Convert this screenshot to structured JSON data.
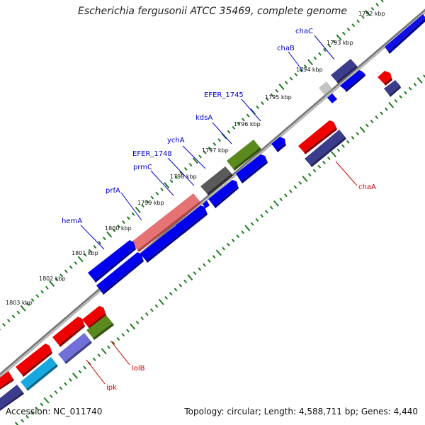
{
  "header": {
    "title": "Escherichia fergusonii ATCC 35469, complete genome"
  },
  "footer": {
    "accession": "Accession: NC_011740",
    "topology": "Topology: circular",
    "length": "Length: 4,588,711 bp",
    "genes": "Genes: 4,440"
  },
  "kbp_labels": [
    "1792 kbp",
    "1793 kbp",
    "1794 kbp",
    "1795 kbp",
    "1796 kbp",
    "1797 kbp",
    "1798 kbp",
    "1799 kbp",
    "1800 kbp",
    "1801 kbp",
    "1802 kbp",
    "1803 kbp"
  ],
  "gene_labels": {
    "chaC": "chaC",
    "chaB": "chaB",
    "efer1745": "EFER_1745",
    "kdsA": "kdsA",
    "ychA": "ychA",
    "efer1748": "EFER_1748",
    "prmC": "prmC",
    "prfA": "prfA",
    "hemA": "hemA",
    "chaA": "chaA",
    "lolB": "lolB",
    "ipk": "ipk"
  },
  "colors": {
    "backbone": "#8c8c8c",
    "tick": "#1e7d1e",
    "label_forward": "#0000cc",
    "label_reverse": "#cc0000",
    "cds_blue": "#0000ee",
    "cds_red": "#ee0000",
    "cds_purple": "#3c3c8c",
    "cds_olive": "#5a8a1e",
    "cds_gray": "#5a5a5a",
    "cds_pink": "#e06a6a",
    "cds_lightpurple": "#7070d8",
    "cds_cyan": "#18a8e0",
    "cds_lightgray": "#c0c0c0"
  }
}
